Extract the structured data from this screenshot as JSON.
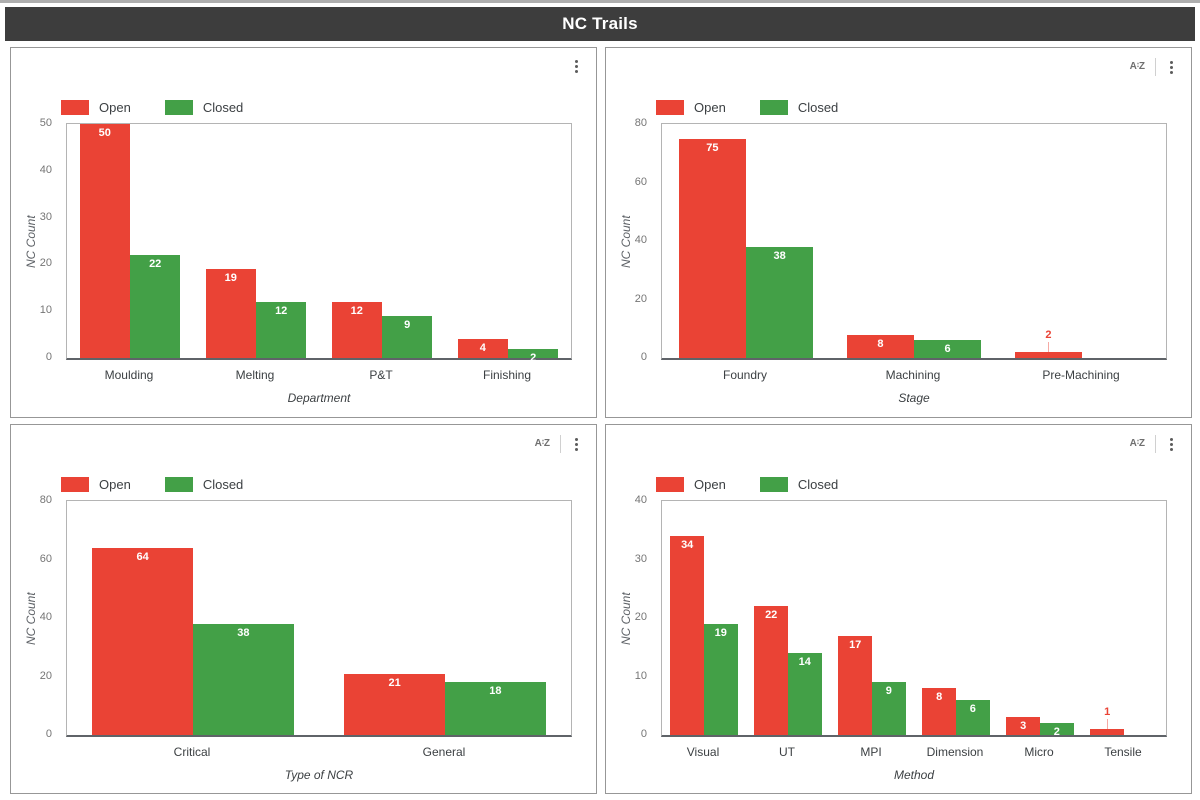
{
  "title": "NC Trails",
  "legend": {
    "open": "Open",
    "closed": "Closed"
  },
  "colors": {
    "open": "#ea4335",
    "closed": "#43a047",
    "header_bg": "#3d3d3d",
    "header_text": "#ffffff"
  },
  "icons": {
    "sort": {
      "name": "sort-az-icon",
      "a": "A",
      "z": "Z"
    },
    "menu": {
      "name": "kebab-menu-icon"
    }
  },
  "chart_data": [
    {
      "type": "bar",
      "title": "",
      "xlabel": "Department",
      "ylabel": "NC Count",
      "ylim": [
        0,
        50
      ],
      "yticks": [
        0,
        10,
        20,
        30,
        40,
        50
      ],
      "grid": false,
      "legend_position": "top-left",
      "has_sort_icon": false,
      "categories": [
        "Moulding",
        "Melting",
        "P&T",
        "Finishing"
      ],
      "series": [
        {
          "name": "Open",
          "color": "#ea4335",
          "values": [
            50,
            19,
            12,
            4
          ]
        },
        {
          "name": "Closed",
          "color": "#43a047",
          "values": [
            22,
            12,
            9,
            2
          ]
        }
      ]
    },
    {
      "type": "bar",
      "title": "",
      "xlabel": "Stage",
      "ylabel": "NC Count",
      "ylim": [
        0,
        80
      ],
      "yticks": [
        0,
        20,
        40,
        60,
        80
      ],
      "grid": false,
      "legend_position": "top-left",
      "has_sort_icon": true,
      "categories": [
        "Foundry",
        "Machining",
        "Pre-Machining"
      ],
      "series": [
        {
          "name": "Open",
          "color": "#ea4335",
          "values": [
            75,
            8,
            2
          ]
        },
        {
          "name": "Closed",
          "color": "#43a047",
          "values": [
            38,
            6,
            0
          ]
        }
      ]
    },
    {
      "type": "bar",
      "title": "",
      "xlabel": "Type of NCR",
      "ylabel": "NC Count",
      "ylim": [
        0,
        80
      ],
      "yticks": [
        0,
        20,
        40,
        60,
        80
      ],
      "grid": false,
      "legend_position": "top-left",
      "has_sort_icon": true,
      "categories": [
        "Critical",
        "General"
      ],
      "series": [
        {
          "name": "Open",
          "color": "#ea4335",
          "values": [
            64,
            21
          ]
        },
        {
          "name": "Closed",
          "color": "#43a047",
          "values": [
            38,
            18
          ]
        }
      ]
    },
    {
      "type": "bar",
      "title": "",
      "xlabel": "Method",
      "ylabel": "NC Count",
      "ylim": [
        0,
        40
      ],
      "yticks": [
        0,
        10,
        20,
        30,
        40
      ],
      "grid": false,
      "legend_position": "top-left",
      "has_sort_icon": true,
      "categories": [
        "Visual",
        "UT",
        "MPI",
        "Dimension",
        "Micro",
        "Tensile"
      ],
      "series": [
        {
          "name": "Open",
          "color": "#ea4335",
          "values": [
            34,
            22,
            17,
            8,
            3,
            1
          ]
        },
        {
          "name": "Closed",
          "color": "#43a047",
          "values": [
            19,
            14,
            9,
            6,
            2,
            0
          ]
        }
      ]
    }
  ]
}
